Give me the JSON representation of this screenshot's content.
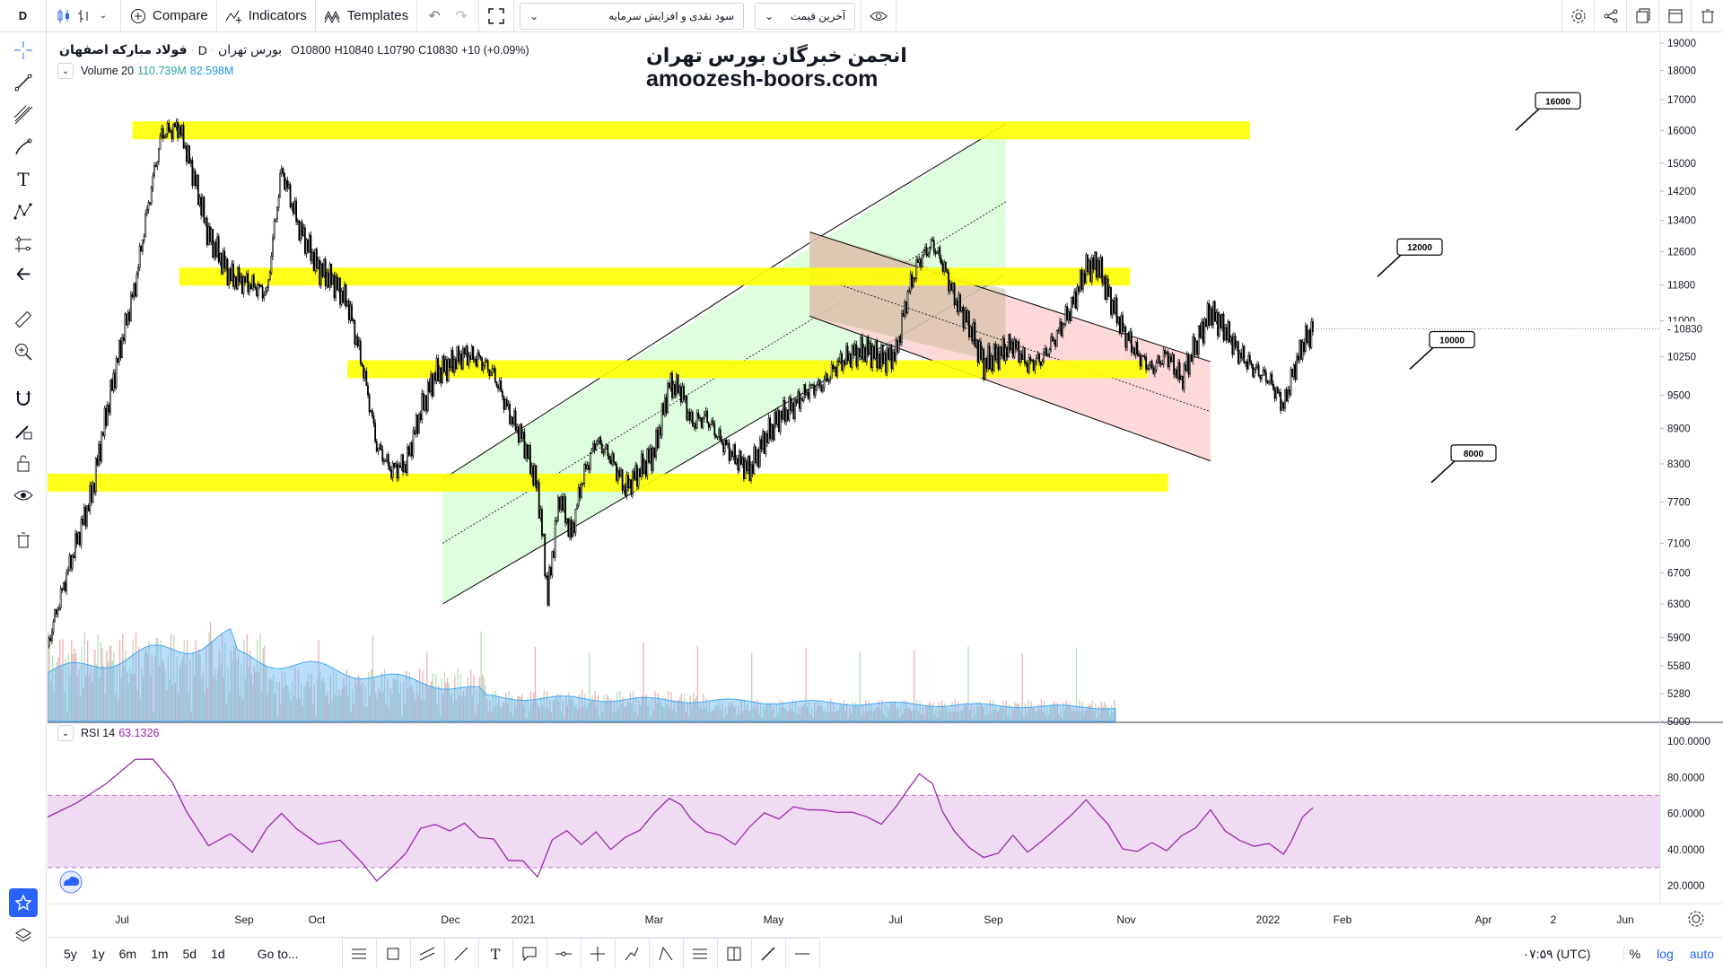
{
  "toolbar": {
    "interval": "D",
    "compare_label": "Compare",
    "indicators_label": "Indicators",
    "templates_label": "Templates",
    "layout_select": "سود نقدی و افزایش سرمایه",
    "price_select": "آخرین قیمت"
  },
  "symbol": {
    "name": "فولاد مبارکه اصفهان",
    "interval": "D",
    "exchange": "بورس تهران",
    "open": "O10800",
    "high": "H10840",
    "low": "L10790",
    "close": "C10830",
    "change": "+10 (+0.09%)"
  },
  "volume_legend": {
    "label": "Volume 20",
    "value1": "110.739M",
    "value2": "82.598M"
  },
  "rsi_legend": {
    "label": "RSI 14",
    "value": "63.1326"
  },
  "watermark": {
    "line1": "انجمن خبرگان بورس تهران",
    "line2": "amoozesh-boors.com"
  },
  "price_axis": {
    "labels": [
      "19000",
      "18000",
      "17000",
      "16000",
      "15000",
      "14200",
      "13400",
      "12600",
      "11800",
      "11000",
      "10250",
      "9500",
      "8900",
      "8300",
      "7700",
      "7100",
      "6700",
      "6300",
      "5900",
      "5580",
      "5280",
      "5000"
    ],
    "current_price": "10830"
  },
  "rsi_axis": {
    "labels": [
      "100.0000",
      "80.0000",
      "60.0000",
      "40.0000",
      "20.0000"
    ]
  },
  "time_axis": {
    "labels": [
      "Jul",
      "Sep",
      "Oct",
      "Dec",
      "2021",
      "Mar",
      "May",
      "Jul",
      "Sep",
      "Nov",
      "2022",
      "Feb",
      "Apr",
      "2",
      "Jun"
    ]
  },
  "level_labels": [
    "16000",
    "12000",
    "10000",
    "8000"
  ],
  "bottom": {
    "ranges": [
      "5y",
      "1y",
      "6m",
      "1m",
      "5d",
      "1d"
    ],
    "goto": "Go to...",
    "clock": "۰۷:۵۹ (UTC)",
    "percent": "%",
    "log": "log",
    "auto": "auto"
  },
  "colors": {
    "highlight": "#ffff00",
    "channel_up_fill": "#ccffcc",
    "channel_down_fill": "#ffcccc",
    "volume_up": "#a5d6a7",
    "volume_down": "#ef9a9a",
    "volume_ma": "#64b5f6",
    "rsi_line": "#9c27b0",
    "rsi_band": "#e1bee7",
    "accent": "#2962ff"
  },
  "chart_data": {
    "type": "candlestick",
    "title": "",
    "price_path": [
      [
        0,
        5800
      ],
      [
        30,
        7800
      ],
      [
        60,
        11800
      ],
      [
        78,
        15900
      ],
      [
        90,
        16100
      ],
      [
        100,
        14600
      ],
      [
        110,
        13000
      ],
      [
        125,
        12000
      ],
      [
        140,
        11800
      ],
      [
        150,
        11600
      ],
      [
        160,
        14800
      ],
      [
        172,
        13200
      ],
      [
        185,
        12200
      ],
      [
        195,
        11900
      ],
      [
        205,
        11400
      ],
      [
        215,
        10100
      ],
      [
        225,
        8600
      ],
      [
        235,
        8200
      ],
      [
        245,
        8300
      ],
      [
        255,
        9200
      ],
      [
        265,
        9900
      ],
      [
        275,
        10100
      ],
      [
        285,
        10300
      ],
      [
        295,
        10200
      ],
      [
        305,
        9900
      ],
      [
        315,
        9200
      ],
      [
        325,
        8700
      ],
      [
        335,
        7900
      ],
      [
        342,
        6400
      ],
      [
        350,
        7800
      ],
      [
        358,
        7200
      ],
      [
        365,
        8000
      ],
      [
        375,
        8700
      ],
      [
        385,
        8400
      ],
      [
        395,
        7900
      ],
      [
        405,
        8200
      ],
      [
        415,
        8500
      ],
      [
        425,
        9700
      ],
      [
        433,
        9600
      ],
      [
        440,
        9000
      ],
      [
        450,
        9100
      ],
      [
        460,
        8700
      ],
      [
        470,
        8400
      ],
      [
        480,
        8200
      ],
      [
        490,
        8700
      ],
      [
        500,
        9100
      ],
      [
        510,
        9300
      ],
      [
        520,
        9600
      ],
      [
        530,
        9700
      ],
      [
        540,
        10100
      ],
      [
        550,
        10300
      ],
      [
        560,
        10400
      ],
      [
        570,
        10200
      ],
      [
        580,
        10300
      ],
      [
        588,
        11600
      ],
      [
        596,
        12400
      ],
      [
        605,
        12800
      ],
      [
        612,
        12300
      ],
      [
        620,
        11500
      ],
      [
        630,
        10900
      ],
      [
        640,
        10100
      ],
      [
        650,
        10300
      ],
      [
        660,
        10500
      ],
      [
        670,
        10100
      ],
      [
        680,
        10200
      ],
      [
        690,
        10700
      ],
      [
        700,
        11300
      ],
      [
        710,
        12200
      ],
      [
        718,
        12300
      ],
      [
        725,
        11600
      ],
      [
        735,
        10800
      ],
      [
        745,
        10300
      ],
      [
        755,
        10000
      ],
      [
        765,
        10300
      ],
      [
        775,
        9800
      ],
      [
        785,
        10500
      ],
      [
        795,
        11200
      ],
      [
        805,
        10800
      ],
      [
        815,
        10300
      ],
      [
        825,
        10000
      ],
      [
        835,
        9800
      ],
      [
        845,
        9300
      ],
      [
        850,
        9800
      ],
      [
        858,
        10500
      ],
      [
        865,
        10830
      ]
    ],
    "horizontal_levels": [
      16000,
      12000,
      10000,
      8000
    ],
    "rsi_path": [
      [
        0,
        58
      ],
      [
        20,
        65
      ],
      [
        40,
        78
      ],
      [
        60,
        88
      ],
      [
        72,
        92
      ],
      [
        85,
        76
      ],
      [
        95,
        62
      ],
      [
        110,
        42
      ],
      [
        125,
        48
      ],
      [
        140,
        40
      ],
      [
        150,
        50
      ],
      [
        160,
        62
      ],
      [
        170,
        50
      ],
      [
        185,
        44
      ],
      [
        200,
        45
      ],
      [
        215,
        32
      ],
      [
        225,
        24
      ],
      [
        235,
        28
      ],
      [
        245,
        40
      ],
      [
        255,
        50
      ],
      [
        265,
        55
      ],
      [
        275,
        50
      ],
      [
        285,
        54
      ],
      [
        295,
        48
      ],
      [
        305,
        44
      ],
      [
        315,
        36
      ],
      [
        325,
        32
      ],
      [
        335,
        26
      ],
      [
        345,
        45
      ],
      [
        355,
        50
      ],
      [
        365,
        44
      ],
      [
        375,
        48
      ],
      [
        385,
        42
      ],
      [
        395,
        45
      ],
      [
        405,
        52
      ],
      [
        415,
        60
      ],
      [
        425,
        68
      ],
      [
        433,
        66
      ],
      [
        440,
        55
      ],
      [
        450,
        52
      ],
      [
        460,
        46
      ],
      [
        470,
        44
      ],
      [
        480,
        52
      ],
      [
        490,
        60
      ],
      [
        500,
        58
      ],
      [
        510,
        62
      ],
      [
        520,
        64
      ],
      [
        530,
        60
      ],
      [
        540,
        62
      ],
      [
        550,
        60
      ],
      [
        560,
        58
      ],
      [
        570,
        55
      ],
      [
        580,
        62
      ],
      [
        588,
        75
      ],
      [
        596,
        80
      ],
      [
        605,
        78
      ],
      [
        612,
        60
      ],
      [
        620,
        50
      ],
      [
        630,
        42
      ],
      [
        640,
        34
      ],
      [
        650,
        40
      ],
      [
        660,
        46
      ],
      [
        670,
        40
      ],
      [
        680,
        44
      ],
      [
        690,
        52
      ],
      [
        700,
        60
      ],
      [
        710,
        66
      ],
      [
        718,
        62
      ],
      [
        725,
        52
      ],
      [
        735,
        42
      ],
      [
        745,
        38
      ],
      [
        755,
        44
      ],
      [
        765,
        40
      ],
      [
        775,
        46
      ],
      [
        785,
        54
      ],
      [
        795,
        60
      ],
      [
        805,
        52
      ],
      [
        815,
        44
      ],
      [
        825,
        42
      ],
      [
        835,
        44
      ],
      [
        845,
        36
      ],
      [
        850,
        46
      ],
      [
        858,
        56
      ],
      [
        865,
        63.13
      ]
    ]
  }
}
